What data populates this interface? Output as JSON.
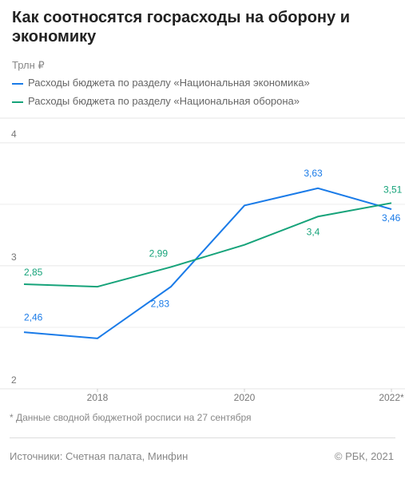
{
  "chart_data": {
    "type": "line",
    "title": "Как соотносятся госрасходы на оборону и экономику",
    "y_label": "Трлн ₽",
    "x": [
      2017,
      2018,
      2019,
      2020,
      2021,
      2022
    ],
    "series": [
      {
        "name": "Расходы бюджета по разделу «Национальная экономика»",
        "color": "#1a7be8",
        "values": [
          2.46,
          2.41,
          2.83,
          3.49,
          3.63,
          3.46
        ],
        "value_labels": [
          "2,46",
          null,
          "2,83",
          null,
          "3,63",
          "3,46"
        ]
      },
      {
        "name": "Расходы бюджета по разделу «Национальная оборона»",
        "color": "#16a37a",
        "values": [
          2.85,
          2.83,
          2.99,
          3.17,
          3.4,
          3.51
        ],
        "value_labels": [
          "2,85",
          null,
          "2,99",
          null,
          "3,4",
          "3,51"
        ]
      }
    ],
    "xlim": [
      2017,
      2022
    ],
    "xticks": [
      2018,
      2020,
      {
        "value": 2022,
        "label": "2022*"
      }
    ],
    "ylim": [
      2,
      4.2
    ],
    "yticks": [
      2,
      3,
      4
    ],
    "minor_grid": [
      2.5,
      3.5
    ],
    "grid": true,
    "footnote": "* Данные сводной бюджетной росписи на 27 сентября",
    "source": "Источники: Счетная палата, Минфин",
    "copyright": "© РБК, 2021"
  }
}
